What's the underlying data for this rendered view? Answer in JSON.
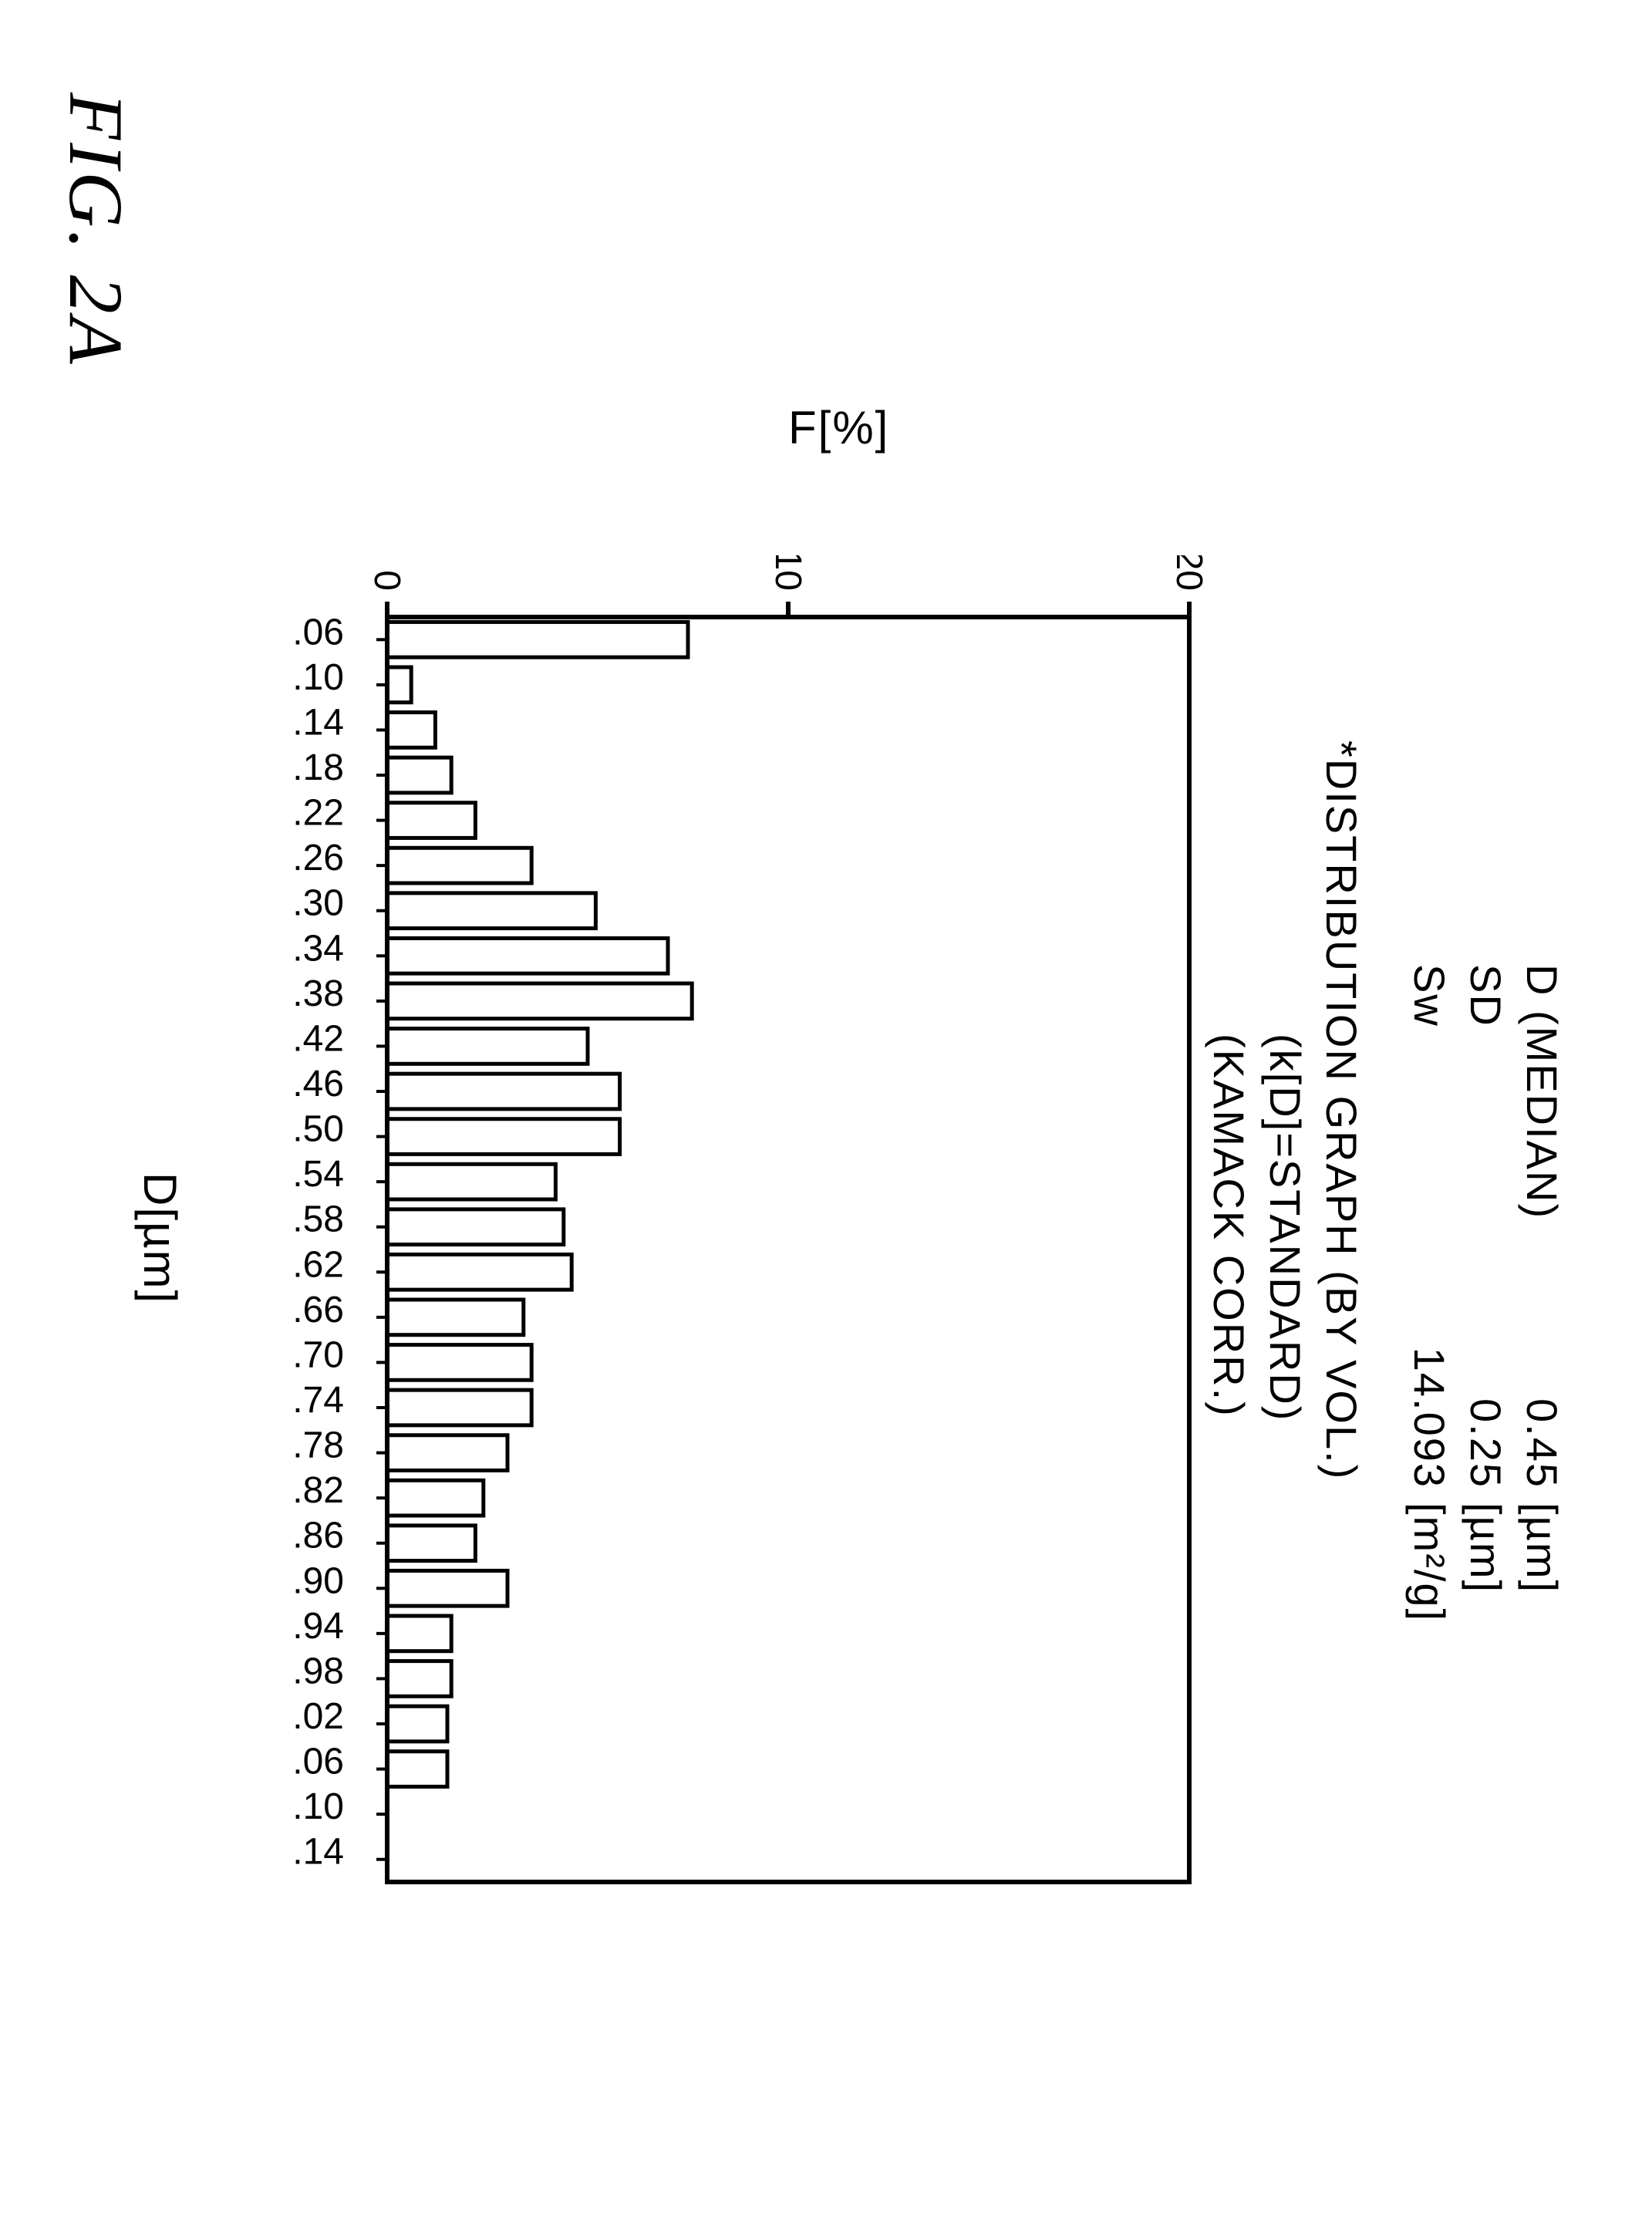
{
  "header": {
    "rows": [
      {
        "label": "D (MEDIAN)",
        "value": "0.45",
        "unit": "[µm]"
      },
      {
        "label": "SD",
        "value": "0.25",
        "unit": "[µm]"
      },
      {
        "label": "Sw",
        "value": "14.093",
        "unit": "[m²/g]"
      }
    ]
  },
  "titles": {
    "line1": "*DISTRIBUTION GRAPH (BY VOL.)",
    "line2": "(k[D]=STANDARD)",
    "line3": "(KAMACK CORR.)"
  },
  "axes": {
    "ylabel": "F[%]",
    "xlabel": "D[µm]",
    "ymin": 0,
    "ymax": 20,
    "yticks": [
      0,
      10,
      20
    ],
    "xtick_labels": [
      "0.06",
      "0.10",
      "0.14",
      "0.18",
      "0.22",
      "0.26",
      "0.30",
      "0.34",
      "0.38",
      "0.42",
      "0.46",
      "0.50",
      "0.54",
      "0.58",
      "0.62",
      "0.66",
      "0.70",
      "0.74",
      "0.78",
      "0.82",
      "0.86",
      "0.90",
      "0.94",
      "0.98",
      "1.02",
      "1.06",
      "1.10",
      "1.14"
    ],
    "tick_fontsize": 48,
    "tick_color": "#000000",
    "axis_stroke": "#000000",
    "axis_stroke_width": 6
  },
  "chart": {
    "type": "bar",
    "values": [
      7.5,
      0.6,
      1.2,
      1.6,
      2.2,
      3.6,
      5.2,
      7.0,
      7.6,
      5.0,
      5.8,
      5.8,
      4.2,
      4.4,
      4.6,
      3.4,
      3.6,
      3.6,
      3.0,
      2.4,
      2.2,
      3.0,
      1.6,
      1.6,
      1.5,
      1.5,
      0.0,
      0.0
    ],
    "bar_fill": "#ffffff",
    "bar_stroke": "#000000",
    "bar_stroke_width": 5,
    "bar_rel_width": 0.78,
    "plot_bg": "#ffffff"
  },
  "figure_label": "FIG. 2A"
}
